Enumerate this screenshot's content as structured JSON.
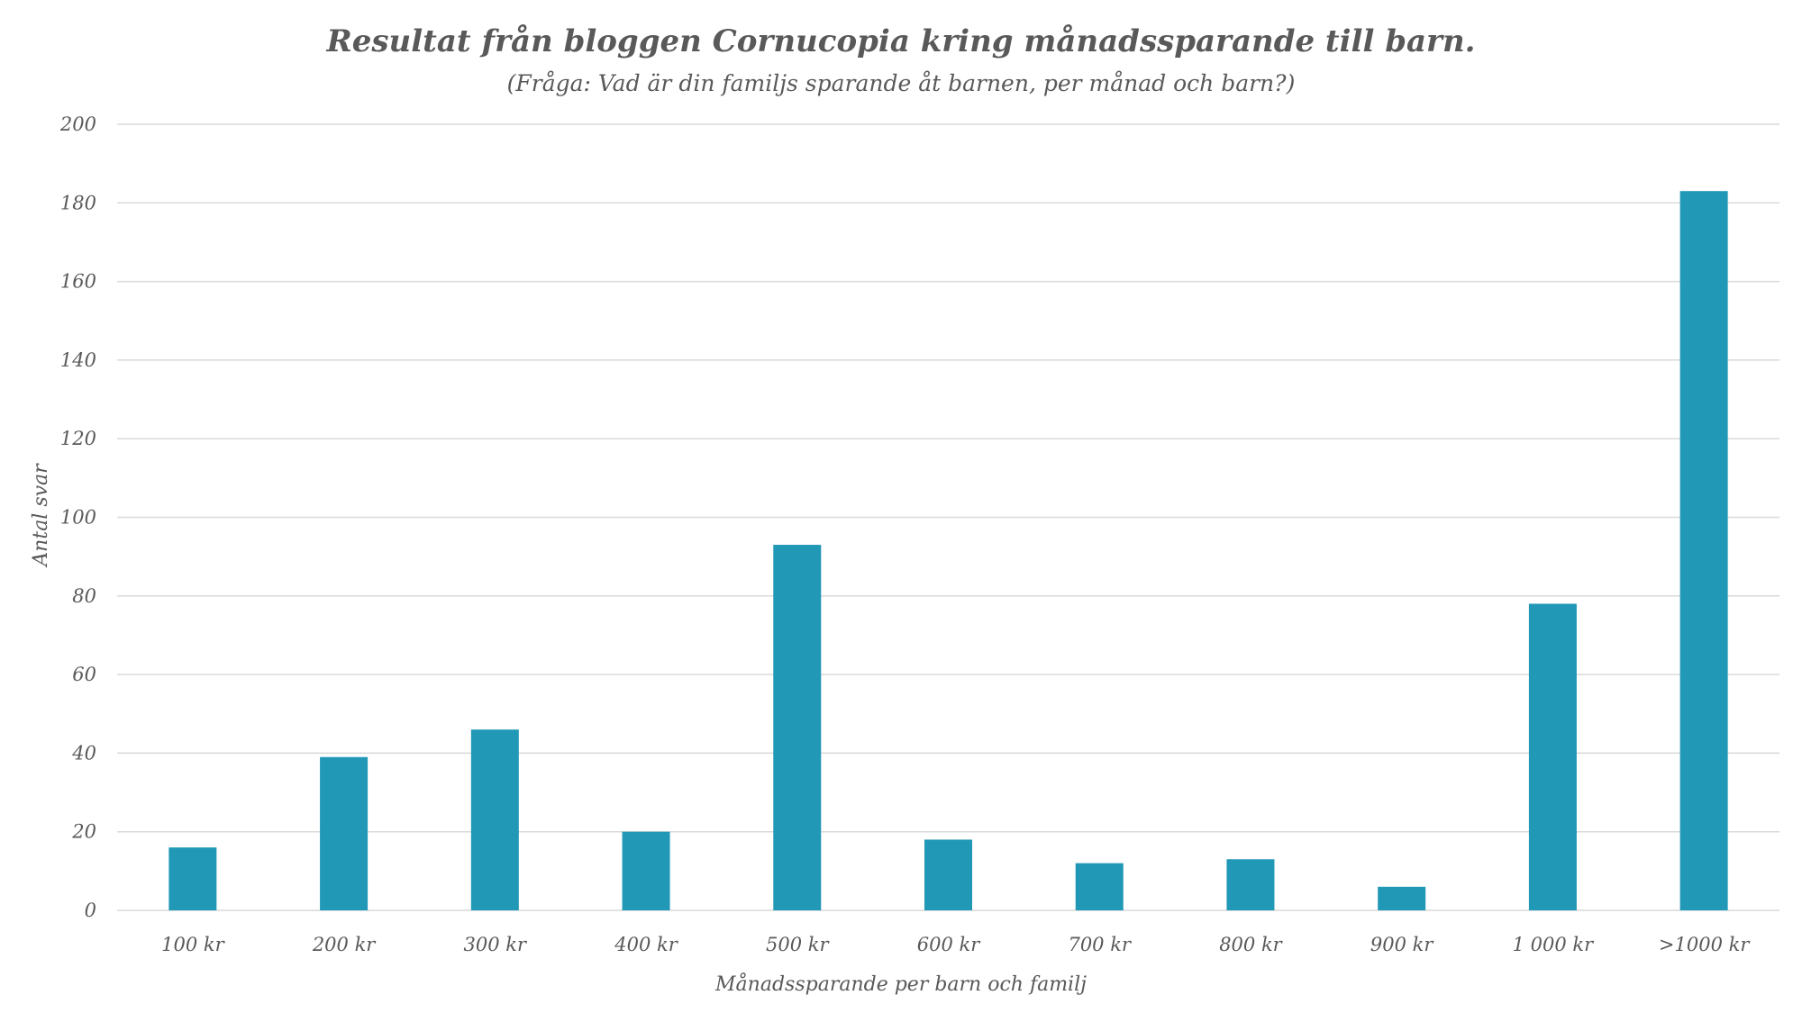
{
  "chart_data": {
    "type": "bar",
    "title": "Resultat från bloggen Cornucopia kring månadssparande till barn.",
    "subtitle": "(Fråga: Vad är din familjs sparande åt barnen, per månad och barn?)",
    "xlabel": "Månadssparande per barn och familj",
    "ylabel": "Antal svar",
    "categories": [
      "100 kr",
      "200 kr",
      "300 kr",
      "400 kr",
      "500 kr",
      "600 kr",
      "700 kr",
      "800 kr",
      "900 kr",
      "1 000 kr",
      ">1000 kr"
    ],
    "values": [
      16,
      39,
      46,
      20,
      93,
      18,
      12,
      13,
      6,
      78,
      183
    ],
    "ylim": [
      0,
      200
    ],
    "yticks": [
      0,
      20,
      40,
      60,
      80,
      100,
      120,
      140,
      160,
      180,
      200
    ],
    "grid": true,
    "legend": "none",
    "bar_color": "#2098b6",
    "grid_color": "#d9d9d9",
    "text_color": "#595959"
  }
}
